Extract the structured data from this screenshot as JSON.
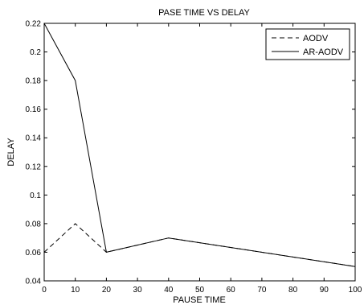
{
  "chart_data": {
    "type": "line",
    "title": "PASE TIME VS DELAY",
    "xlabel": "PAUSE TIME",
    "ylabel": "DELAY",
    "xlim": [
      0,
      100
    ],
    "ylim": [
      0.04,
      0.22
    ],
    "x_ticks": [
      0,
      10,
      20,
      30,
      40,
      50,
      60,
      70,
      80,
      90,
      100
    ],
    "y_ticks": [
      "0.04",
      "0.06",
      "0.08",
      "0.1",
      "0.12",
      "0.14",
      "0.16",
      "0.18",
      "0.2",
      "0.22"
    ],
    "grid": false,
    "legend_position": "top-right",
    "series": [
      {
        "name": "AODV",
        "line_style": "dashed",
        "color": "#000000",
        "x": [
          0,
          10,
          20,
          40,
          100
        ],
        "y": [
          0.06,
          0.08,
          0.06,
          0.07,
          0.05
        ]
      },
      {
        "name": "AR-AODV",
        "line_style": "solid",
        "color": "#000000",
        "x": [
          0,
          10,
          20,
          40,
          100
        ],
        "y": [
          0.22,
          0.18,
          0.06,
          0.07,
          0.05
        ]
      }
    ]
  }
}
